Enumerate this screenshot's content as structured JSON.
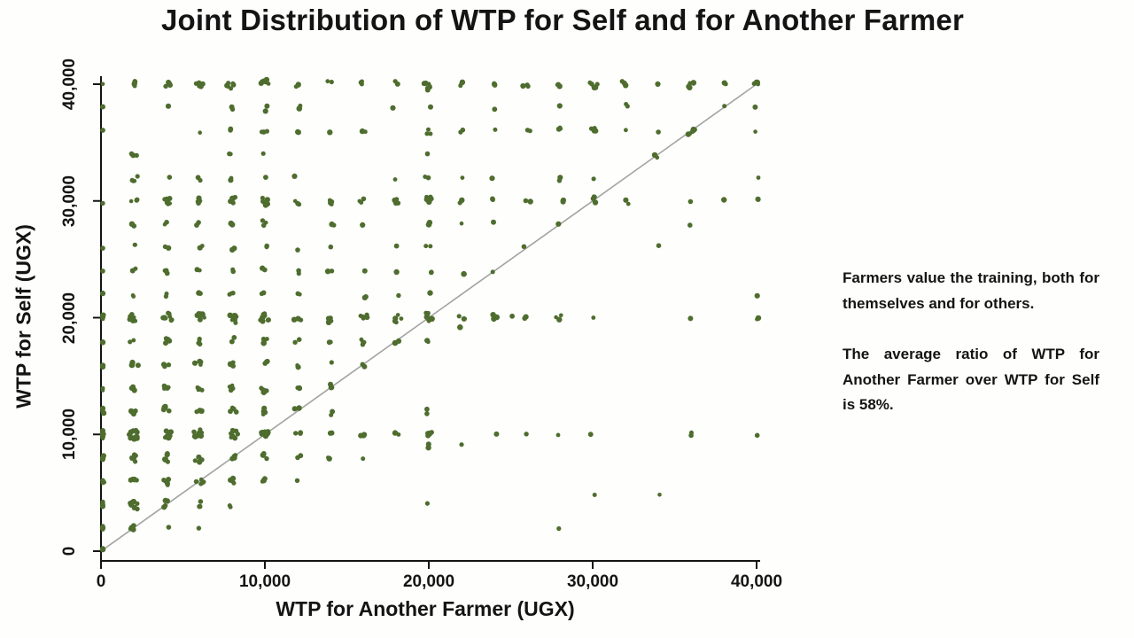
{
  "title": "Joint Distribution of WTP for Self and for Another Farmer",
  "annotation": {
    "para1": "Farmers value the training, both for themselves and for others.",
    "para2": "The average ratio of WTP for Another Farmer over WTP for Self is 58%."
  },
  "chart_data": {
    "type": "scatter",
    "title": "Joint Distribution of WTP for Self and for Another Farmer",
    "xlabel": "WTP for Another Farmer (UGX)",
    "ylabel": "WTP for Self (UGX)",
    "xlim": [
      0,
      40000
    ],
    "ylim": [
      0,
      40000
    ],
    "grid": false,
    "xtick_values": [
      0,
      10000,
      20000,
      30000,
      40000
    ],
    "xtick_labels": [
      "0",
      "10,000",
      "20,000",
      "30,000",
      "40,000"
    ],
    "ytick_values": [
      0,
      10000,
      20000,
      30000,
      40000
    ],
    "ytick_labels": [
      "0",
      "10,000",
      "20,000",
      "30,000",
      "40,000"
    ],
    "point_color": "#4e6d2e",
    "reference_line": {
      "from": [
        0,
        0
      ],
      "to": [
        40000,
        40000
      ],
      "color": "#a3a3a3"
    },
    "clusters_note": "each entry is [wtp_other_x, wtp_self_y, approx_point_count]; points are jittered in source figure",
    "clusters": [
      [
        0,
        40000,
        1
      ],
      [
        2000,
        40000,
        4
      ],
      [
        4000,
        40000,
        5
      ],
      [
        6000,
        40000,
        5
      ],
      [
        8000,
        40000,
        6
      ],
      [
        10000,
        40000,
        7
      ],
      [
        12000,
        40000,
        3
      ],
      [
        14000,
        40000,
        2
      ],
      [
        16000,
        40000,
        3
      ],
      [
        18000,
        40000,
        2
      ],
      [
        20000,
        40000,
        7
      ],
      [
        22000,
        40000,
        3
      ],
      [
        24000,
        40000,
        3
      ],
      [
        26000,
        40000,
        3
      ],
      [
        28000,
        40000,
        3
      ],
      [
        30000,
        40000,
        6
      ],
      [
        32000,
        40000,
        3
      ],
      [
        34000,
        40000,
        1
      ],
      [
        36000,
        40000,
        5
      ],
      [
        38000,
        40000,
        2
      ],
      [
        40000,
        40000,
        4
      ],
      [
        0,
        38000,
        1
      ],
      [
        4000,
        38000,
        1
      ],
      [
        8000,
        38000,
        2
      ],
      [
        10000,
        38000,
        3
      ],
      [
        12000,
        38000,
        2
      ],
      [
        18000,
        38000,
        1
      ],
      [
        20000,
        38000,
        1
      ],
      [
        24000,
        38000,
        1
      ],
      [
        28000,
        38000,
        1
      ],
      [
        32000,
        38000,
        2
      ],
      [
        38000,
        38000,
        1
      ],
      [
        40000,
        38000,
        1
      ],
      [
        0,
        36000,
        1
      ],
      [
        6000,
        36000,
        1
      ],
      [
        8000,
        36000,
        2
      ],
      [
        10000,
        36000,
        3
      ],
      [
        12000,
        36000,
        2
      ],
      [
        14000,
        36000,
        1
      ],
      [
        16000,
        36000,
        2
      ],
      [
        20000,
        36000,
        3
      ],
      [
        22000,
        36000,
        2
      ],
      [
        24000,
        36000,
        1
      ],
      [
        26000,
        36000,
        2
      ],
      [
        28000,
        36000,
        3
      ],
      [
        30000,
        36000,
        4
      ],
      [
        32000,
        36000,
        1
      ],
      [
        34000,
        36000,
        1
      ],
      [
        36000,
        36000,
        6
      ],
      [
        40000,
        36000,
        1
      ],
      [
        2000,
        34000,
        3
      ],
      [
        8000,
        34000,
        2
      ],
      [
        10000,
        34000,
        1
      ],
      [
        20000,
        34000,
        1
      ],
      [
        34000,
        34000,
        2
      ],
      [
        2000,
        32000,
        4
      ],
      [
        4000,
        32000,
        2
      ],
      [
        6000,
        32000,
        2
      ],
      [
        8000,
        32000,
        2
      ],
      [
        10000,
        32000,
        1
      ],
      [
        12000,
        32000,
        1
      ],
      [
        18000,
        32000,
        1
      ],
      [
        20000,
        32000,
        2
      ],
      [
        22000,
        32000,
        1
      ],
      [
        24000,
        32000,
        1
      ],
      [
        28000,
        32000,
        2
      ],
      [
        30000,
        32000,
        1
      ],
      [
        40000,
        32000,
        1
      ],
      [
        0,
        30000,
        1
      ],
      [
        2000,
        30000,
        3
      ],
      [
        4000,
        30000,
        7
      ],
      [
        6000,
        30000,
        6
      ],
      [
        8000,
        30000,
        5
      ],
      [
        10000,
        30000,
        8
      ],
      [
        12000,
        30000,
        3
      ],
      [
        14000,
        30000,
        4
      ],
      [
        16000,
        30000,
        3
      ],
      [
        18000,
        30000,
        4
      ],
      [
        20000,
        30000,
        7
      ],
      [
        22000,
        30000,
        2
      ],
      [
        24000,
        30000,
        3
      ],
      [
        26000,
        30000,
        2
      ],
      [
        28000,
        30000,
        3
      ],
      [
        30000,
        30000,
        4
      ],
      [
        32000,
        30000,
        2
      ],
      [
        36000,
        30000,
        1
      ],
      [
        38000,
        30000,
        1
      ],
      [
        40000,
        30000,
        2
      ],
      [
        2000,
        28000,
        2
      ],
      [
        4000,
        28000,
        2
      ],
      [
        6000,
        28000,
        2
      ],
      [
        8000,
        28000,
        2
      ],
      [
        10000,
        28000,
        3
      ],
      [
        14000,
        28000,
        2
      ],
      [
        16000,
        28000,
        1
      ],
      [
        20000,
        28000,
        2
      ],
      [
        22000,
        28000,
        1
      ],
      [
        24000,
        28000,
        1
      ],
      [
        28000,
        28000,
        1
      ],
      [
        36000,
        28000,
        1
      ],
      [
        0,
        26000,
        1
      ],
      [
        2000,
        26000,
        2
      ],
      [
        4000,
        26000,
        2
      ],
      [
        6000,
        26000,
        2
      ],
      [
        8000,
        26000,
        2
      ],
      [
        10000,
        26000,
        2
      ],
      [
        12000,
        26000,
        1
      ],
      [
        14000,
        26000,
        1
      ],
      [
        18000,
        26000,
        1
      ],
      [
        20000,
        26000,
        2
      ],
      [
        26000,
        26000,
        1
      ],
      [
        34000,
        26000,
        1
      ],
      [
        0,
        24000,
        1
      ],
      [
        2000,
        24000,
        2
      ],
      [
        4000,
        24000,
        3
      ],
      [
        6000,
        24000,
        2
      ],
      [
        8000,
        24000,
        2
      ],
      [
        10000,
        24000,
        3
      ],
      [
        12000,
        24000,
        2
      ],
      [
        14000,
        24000,
        2
      ],
      [
        16000,
        24000,
        1
      ],
      [
        18000,
        24000,
        1
      ],
      [
        20000,
        24000,
        2
      ],
      [
        22000,
        24000,
        1
      ],
      [
        24000,
        24000,
        1
      ],
      [
        0,
        22000,
        2
      ],
      [
        2000,
        22000,
        2
      ],
      [
        4000,
        22000,
        2
      ],
      [
        6000,
        22000,
        2
      ],
      [
        8000,
        22000,
        3
      ],
      [
        10000,
        22000,
        2
      ],
      [
        12000,
        22000,
        2
      ],
      [
        16000,
        22000,
        2
      ],
      [
        18000,
        22000,
        1
      ],
      [
        20000,
        22000,
        1
      ],
      [
        40000,
        22000,
        1
      ],
      [
        0,
        20000,
        4
      ],
      [
        2000,
        20000,
        9
      ],
      [
        4000,
        20000,
        9
      ],
      [
        6000,
        20000,
        9
      ],
      [
        8000,
        20000,
        8
      ],
      [
        10000,
        20000,
        9
      ],
      [
        12000,
        20000,
        4
      ],
      [
        14000,
        20000,
        5
      ],
      [
        16000,
        20000,
        5
      ],
      [
        18000,
        20000,
        6
      ],
      [
        20000,
        20000,
        9
      ],
      [
        22000,
        20000,
        4
      ],
      [
        24000,
        20000,
        3
      ],
      [
        25000,
        20000,
        1
      ],
      [
        26000,
        20000,
        2
      ],
      [
        28000,
        20000,
        3
      ],
      [
        30000,
        20000,
        1
      ],
      [
        36000,
        20000,
        1
      ],
      [
        40000,
        20000,
        2
      ],
      [
        22000,
        19000,
        1
      ],
      [
        0,
        18000,
        2
      ],
      [
        2000,
        18000,
        2
      ],
      [
        4000,
        18000,
        4
      ],
      [
        6000,
        18000,
        4
      ],
      [
        8000,
        18000,
        3
      ],
      [
        10000,
        18000,
        4
      ],
      [
        12000,
        18000,
        2
      ],
      [
        14000,
        18000,
        2
      ],
      [
        16000,
        18000,
        4
      ],
      [
        18000,
        18000,
        2
      ],
      [
        20000,
        18000,
        2
      ],
      [
        0,
        16000,
        2
      ],
      [
        2000,
        16000,
        4
      ],
      [
        4000,
        16000,
        3
      ],
      [
        6000,
        16000,
        4
      ],
      [
        8000,
        16000,
        4
      ],
      [
        10000,
        16000,
        3
      ],
      [
        12000,
        16000,
        2
      ],
      [
        14000,
        16000,
        1
      ],
      [
        16000,
        16000,
        2
      ],
      [
        0,
        14000,
        2
      ],
      [
        2000,
        14000,
        4
      ],
      [
        4000,
        14000,
        4
      ],
      [
        6000,
        14000,
        4
      ],
      [
        8000,
        14000,
        4
      ],
      [
        10000,
        14000,
        6
      ],
      [
        12000,
        14000,
        3
      ],
      [
        14000,
        14000,
        2
      ],
      [
        0,
        12000,
        3
      ],
      [
        2000,
        12000,
        4
      ],
      [
        4000,
        12000,
        5
      ],
      [
        6000,
        12000,
        3
      ],
      [
        8000,
        12000,
        4
      ],
      [
        10000,
        12000,
        5
      ],
      [
        12000,
        12000,
        3
      ],
      [
        14000,
        12000,
        2
      ],
      [
        20000,
        12000,
        2
      ],
      [
        0,
        10000,
        6
      ],
      [
        2000,
        10000,
        11
      ],
      [
        4000,
        10000,
        10
      ],
      [
        6000,
        10000,
        9
      ],
      [
        8000,
        10000,
        8
      ],
      [
        10000,
        10000,
        9
      ],
      [
        12000,
        10000,
        3
      ],
      [
        14000,
        10000,
        2
      ],
      [
        16000,
        10000,
        3
      ],
      [
        18000,
        10000,
        2
      ],
      [
        20000,
        10000,
        7
      ],
      [
        24000,
        10000,
        1
      ],
      [
        26000,
        10000,
        1
      ],
      [
        28000,
        10000,
        1
      ],
      [
        30000,
        10000,
        1
      ],
      [
        36000,
        10000,
        2
      ],
      [
        40000,
        10000,
        1
      ],
      [
        20000,
        9000,
        2
      ],
      [
        22000,
        9000,
        1
      ],
      [
        0,
        8000,
        3
      ],
      [
        2000,
        8000,
        7
      ],
      [
        4000,
        8000,
        6
      ],
      [
        6000,
        8000,
        5
      ],
      [
        8000,
        8000,
        4
      ],
      [
        10000,
        8000,
        3
      ],
      [
        12000,
        8000,
        2
      ],
      [
        14000,
        8000,
        2
      ],
      [
        16000,
        8000,
        1
      ],
      [
        0,
        6000,
        3
      ],
      [
        2000,
        6000,
        6
      ],
      [
        4000,
        6000,
        6
      ],
      [
        6000,
        6000,
        5
      ],
      [
        8000,
        6000,
        4
      ],
      [
        10000,
        6000,
        4
      ],
      [
        12000,
        6000,
        1
      ],
      [
        30000,
        5000,
        1
      ],
      [
        34000,
        5000,
        1
      ],
      [
        0,
        4000,
        4
      ],
      [
        2000,
        4000,
        8
      ],
      [
        4000,
        4000,
        5
      ],
      [
        6000,
        4000,
        3
      ],
      [
        8000,
        4000,
        2
      ],
      [
        20000,
        4000,
        1
      ],
      [
        0,
        2000,
        3
      ],
      [
        2000,
        2000,
        5
      ],
      [
        4000,
        2000,
        1
      ],
      [
        6000,
        2000,
        1
      ],
      [
        28000,
        2000,
        1
      ],
      [
        0,
        0,
        3
      ]
    ]
  }
}
